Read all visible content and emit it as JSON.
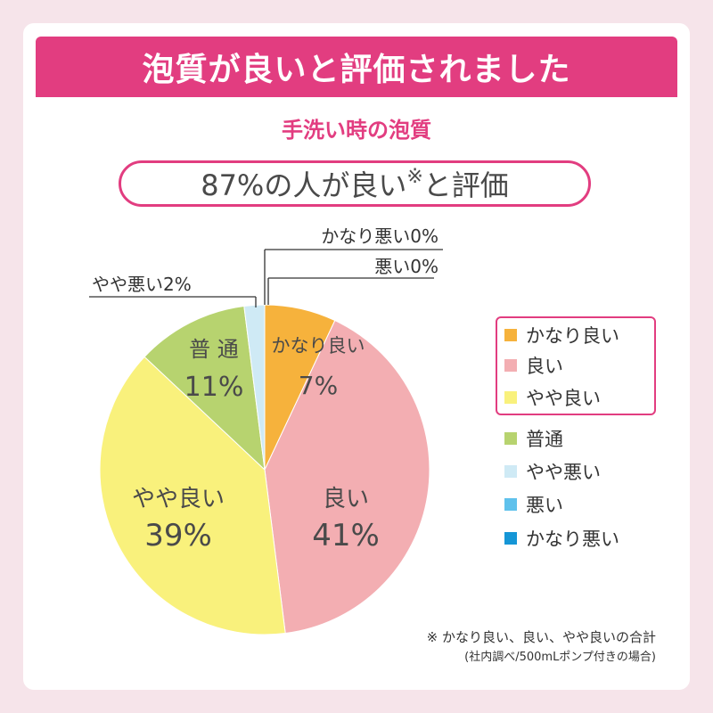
{
  "banner": {
    "title": "泡質が良いと評価されました"
  },
  "subtitle": "手洗い時の泡質",
  "headline": {
    "text": "87%の人が良い",
    "mark": "※",
    "suffix": "と評価"
  },
  "chart_data": {
    "type": "pie",
    "title": "手洗い時の泡質",
    "slices": [
      {
        "label": "かなり良い",
        "value": 7,
        "display": "7%",
        "color": "#f6b23c"
      },
      {
        "label": "良い",
        "value": 41,
        "display": "41%",
        "color": "#f3aeb2"
      },
      {
        "label": "やや良い",
        "value": 39,
        "display": "39%",
        "color": "#f9f17c"
      },
      {
        "label": "普通",
        "value": 11,
        "display": "11%",
        "color": "#b7d36f"
      },
      {
        "label": "やや悪い",
        "value": 2,
        "display": "2%",
        "color": "#cfeaf5"
      },
      {
        "label": "悪い",
        "value": 0,
        "display": "0%",
        "color": "#5fc1ec"
      },
      {
        "label": "かなり悪い",
        "value": 0,
        "display": "0%",
        "color": "#1596d6"
      }
    ],
    "slice_labels": {
      "kanari_yoi": {
        "name": "かなり良い",
        "pct": "7%"
      },
      "yoi": {
        "name": "良い",
        "pct": "41%"
      },
      "yaya_yoi": {
        "name": "やや良い",
        "pct": "39%"
      },
      "futsu": {
        "name": "普 通",
        "pct": "11%"
      }
    },
    "callouts": {
      "yaya_warui": "やや悪い2%",
      "kanari_warui": "かなり悪い0%",
      "warui": "悪い0%"
    },
    "legend": [
      "かなり良い",
      "良い",
      "やや良い",
      "普通",
      "やや悪い",
      "悪い",
      "かなり悪い"
    ],
    "legend_placement": "right",
    "legend_highlight": "top three items boxed"
  },
  "footnote": {
    "line1": "※ かなり良い、良い、やや良いの合計",
    "line2": "(社内調べ/500mLポンプ付きの場合)"
  },
  "colors": {
    "accent": "#e23d80",
    "background": "#f6e4ea"
  }
}
